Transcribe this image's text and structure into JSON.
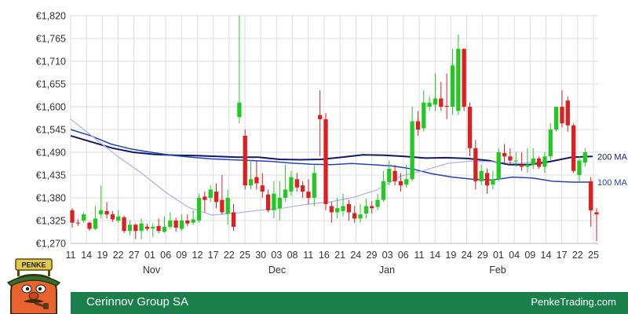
{
  "footer": {
    "company": "Cerinnov Group SA",
    "site": "PenkeTrading.com"
  },
  "logo": {
    "sign_text": "PENKE"
  },
  "chart_data": {
    "type": "candlestick",
    "title": "",
    "y_range": [
      1270,
      1820
    ],
    "y_ticks": [
      "€1,820",
      "€1,765",
      "€1,710",
      "€1,655",
      "€1,600",
      "€1,545",
      "€1,490",
      "€1,435",
      "€1,380",
      "€1,325",
      "€1,270"
    ],
    "x_ticks": [
      "11",
      "14",
      "19",
      "22",
      "27",
      "01",
      "06",
      "09",
      "12",
      "17",
      "22",
      "25",
      "30",
      "03",
      "08",
      "11",
      "16",
      "21",
      "24",
      "29",
      "03",
      "06",
      "11",
      "14",
      "19",
      "24",
      "29",
      "01",
      "04",
      "09",
      "14",
      "17",
      "22",
      "25"
    ],
    "months": [
      "Nov",
      "Dec",
      "Jan",
      "Feb"
    ],
    "grid": true,
    "colors": {
      "up": "#22c922",
      "down": "#dd1f1f",
      "ma100": "#2244bb",
      "ma200": "#111a66",
      "ma_light": "#aab0ee",
      "grid": "#dddddd"
    },
    "moving_averages": [
      {
        "name": "200 MA",
        "values": [
          1530,
          1515,
          1500,
          1490,
          1485,
          1483,
          1482,
          1480,
          1478,
          1478,
          1473,
          1472,
          1473,
          1478,
          1484,
          1483,
          1480,
          1476,
          1477,
          1475,
          1470,
          1460,
          1460,
          1468,
          1478,
          1480
        ]
      },
      {
        "name": "100 MA",
        "values": [
          1545,
          1530,
          1510,
          1498,
          1490,
          1483,
          1478,
          1474,
          1472,
          1470,
          1468,
          1464,
          1461,
          1460,
          1463,
          1460,
          1457,
          1450,
          1438,
          1430,
          1425,
          1423,
          1430,
          1428,
          1420,
          1418,
          1418
        ]
      },
      {
        "name": "",
        "values": [
          1570,
          1525,
          1480,
          1440,
          1395,
          1357,
          1338,
          1343,
          1350,
          1355,
          1364,
          1370,
          1381,
          1399,
          1432,
          1446,
          1463,
          1469,
          1467,
          1463,
          1468
        ]
      }
    ],
    "candles": [
      [
        1350,
        1320,
        1355,
        1308
      ],
      [
        1320,
        1318,
        1328,
        1312
      ],
      [
        1325,
        1340,
        1345,
        1320
      ],
      [
        1320,
        1305,
        1322,
        1300
      ],
      [
        1305,
        1330,
        1360,
        1302
      ],
      [
        1340,
        1350,
        1410,
        1330
      ],
      [
        1348,
        1340,
        1370,
        1330
      ],
      [
        1340,
        1328,
        1348,
        1322
      ],
      [
        1325,
        1335,
        1350,
        1320
      ],
      [
        1333,
        1300,
        1337,
        1295
      ],
      [
        1300,
        1315,
        1325,
        1290
      ],
      [
        1315,
        1300,
        1318,
        1280
      ],
      [
        1300,
        1318,
        1330,
        1280
      ],
      [
        1310,
        1305,
        1318,
        1300
      ],
      [
        1306,
        1310,
        1318,
        1285
      ],
      [
        1312,
        1300,
        1330,
        1295
      ],
      [
        1298,
        1310,
        1335,
        1295
      ],
      [
        1310,
        1325,
        1345,
        1305
      ],
      [
        1325,
        1308,
        1332,
        1298
      ],
      [
        1305,
        1325,
        1340,
        1300
      ],
      [
        1325,
        1318,
        1340,
        1312
      ],
      [
        1320,
        1328,
        1350,
        1315
      ],
      [
        1325,
        1380,
        1390,
        1320
      ],
      [
        1383,
        1375,
        1395,
        1345
      ],
      [
        1380,
        1400,
        1410,
        1370
      ],
      [
        1395,
        1370,
        1415,
        1355
      ],
      [
        1375,
        1345,
        1435,
        1340
      ],
      [
        1342,
        1380,
        1400,
        1315
      ],
      [
        1345,
        1310,
        1365,
        1300
      ],
      [
        1575,
        1610,
        1820,
        1560
      ],
      [
        1530,
        1410,
        1545,
        1400
      ],
      [
        1410,
        1425,
        1470,
        1400
      ],
      [
        1430,
        1415,
        1470,
        1400
      ],
      [
        1410,
        1395,
        1440,
        1380
      ],
      [
        1388,
        1350,
        1400,
        1345
      ],
      [
        1350,
        1390,
        1420,
        1330
      ],
      [
        1355,
        1380,
        1420,
        1325
      ],
      [
        1380,
        1400,
        1460,
        1370
      ],
      [
        1395,
        1430,
        1445,
        1385
      ],
      [
        1425,
        1405,
        1440,
        1395
      ],
      [
        1410,
        1395,
        1420,
        1380
      ],
      [
        1395,
        1380,
        1425,
        1365
      ],
      [
        1380,
        1440,
        1460,
        1360
      ],
      [
        1580,
        1570,
        1640,
        1480
      ],
      [
        1570,
        1365,
        1585,
        1350
      ],
      [
        1360,
        1345,
        1370,
        1320
      ],
      [
        1345,
        1355,
        1380,
        1330
      ],
      [
        1348,
        1360,
        1390,
        1335
      ],
      [
        1365,
        1345,
        1375,
        1325
      ],
      [
        1343,
        1330,
        1360,
        1320
      ],
      [
        1330,
        1340,
        1365,
        1320
      ],
      [
        1342,
        1360,
        1378,
        1330
      ],
      [
        1360,
        1355,
        1372,
        1342
      ],
      [
        1358,
        1375,
        1390,
        1350
      ],
      [
        1375,
        1420,
        1445,
        1370
      ],
      [
        1418,
        1450,
        1470,
        1410
      ],
      [
        1445,
        1420,
        1460,
        1410
      ],
      [
        1420,
        1410,
        1440,
        1395
      ],
      [
        1412,
        1425,
        1460,
        1405
      ],
      [
        1425,
        1565,
        1600,
        1420
      ],
      [
        1565,
        1545,
        1590,
        1530
      ],
      [
        1548,
        1610,
        1640,
        1540
      ],
      [
        1600,
        1610,
        1625,
        1590
      ],
      [
        1605,
        1620,
        1680,
        1590
      ],
      [
        1620,
        1600,
        1660,
        1590
      ],
      [
        1602,
        1600,
        1680,
        1570
      ],
      [
        1600,
        1700,
        1740,
        1580
      ],
      [
        1590,
        1740,
        1775,
        1580
      ],
      [
        1740,
        1600,
        1740,
        1590
      ],
      [
        1600,
        1500,
        1610,
        1480
      ],
      [
        1500,
        1420,
        1520,
        1400
      ],
      [
        1420,
        1445,
        1460,
        1410
      ],
      [
        1440,
        1410,
        1450,
        1390
      ],
      [
        1412,
        1425,
        1445,
        1400
      ],
      [
        1425,
        1490,
        1500,
        1420
      ],
      [
        1488,
        1480,
        1510,
        1465
      ],
      [
        1480,
        1470,
        1500,
        1460
      ],
      [
        1468,
        1470,
        1490,
        1455
      ],
      [
        1460,
        1455,
        1490,
        1445
      ],
      [
        1455,
        1460,
        1500,
        1440
      ],
      [
        1460,
        1475,
        1500,
        1450
      ],
      [
        1475,
        1455,
        1480,
        1450
      ],
      [
        1455,
        1480,
        1490,
        1440
      ],
      [
        1480,
        1545,
        1560,
        1470
      ],
      [
        1545,
        1600,
        1600,
        1540
      ],
      [
        1600,
        1560,
        1640,
        1550
      ],
      [
        1615,
        1555,
        1625,
        1540
      ],
      [
        1555,
        1445,
        1560,
        1440
      ],
      [
        1435,
        1470,
        1480,
        1420
      ],
      [
        1465,
        1490,
        1500,
        1455
      ],
      [
        1420,
        1350,
        1430,
        1310
      ],
      [
        1345,
        1340,
        1355,
        1275
      ]
    ]
  }
}
